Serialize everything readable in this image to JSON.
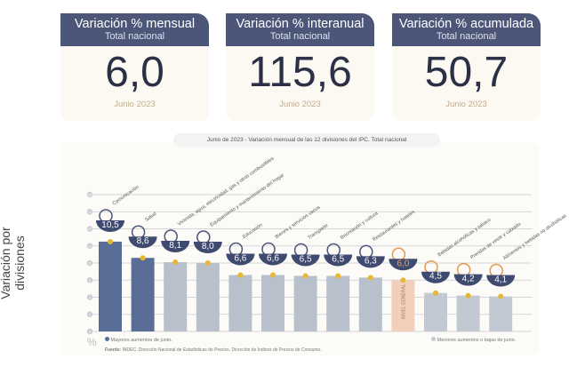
{
  "cards": [
    {
      "title": "Variación % mensual",
      "subtitle": "Total nacional",
      "value": "6,0",
      "date": "Junio 2023"
    },
    {
      "title": "Variación % interanual",
      "subtitle": "Total nacional",
      "value": "115,6",
      "date": "Junio 2023"
    },
    {
      "title": "Variación % acumulada",
      "subtitle": "Total nacional",
      "value": "50,7",
      "date": "Junio 2023"
    }
  ],
  "chart_data": {
    "type": "bar",
    "title_date": "Junio de 2023",
    "title": " - Variación mensual de las 12 divisiones del IPC. Total nacional",
    "ylabel": "Variación por divisiones",
    "yunit": "%",
    "ylim": [
      0,
      16
    ],
    "yticks": [
      "0",
      "2",
      "4",
      "6",
      "8",
      "10",
      "12",
      "14",
      "16"
    ],
    "categories": [
      "Comunicación",
      "Salud",
      "Vivienda, agua, electricidad, gas y otros combustibles",
      "Equipamiento y mantenimiento del hogar",
      "Educación",
      "Bienes y servicios varios",
      "Transporte",
      "Recreación y cultura",
      "Restaurantes y hoteles",
      "NIVEL GENERAL",
      "Bebidas alcohólicas y tabaco",
      "Prendas de vestir y calzado",
      "Alimentos y bebidas no alcohólicas"
    ],
    "values": [
      10.5,
      8.6,
      8.1,
      8.0,
      6.6,
      6.6,
      6.5,
      6.5,
      6.3,
      6.0,
      4.5,
      4.2,
      4.1
    ],
    "labels": [
      "10,5",
      "8,6",
      "8,1",
      "8,0",
      "6,6",
      "6,6",
      "6,5",
      "6,5",
      "6,3",
      "6,0",
      "4,5",
      "4,2",
      "4,1"
    ],
    "groups": [
      "high",
      "high",
      "mid",
      "mid",
      "mid",
      "mid",
      "mid",
      "mid",
      "mid",
      "general",
      "low",
      "low",
      "low"
    ],
    "general_label": "NIVEL GENERAL",
    "colors": {
      "high": "#5a6d96",
      "mid": "#b8c0cb",
      "general": "#f1cfbb",
      "low": "#c3c9d2",
      "bubble": "#3e4a70",
      "dot": "#e8b830",
      "general_text": "#f0a04a"
    },
    "legend": {
      "left": "Mayores aumentos de junio.",
      "right": "Menores aumentos o bajas de junio."
    },
    "grid": true
  },
  "source": {
    "label": "Fuente:",
    "text": " INDEC. Dirección Nacional de Estadísticas de Precios. Dirección de Índices de Precios de Consumo."
  }
}
